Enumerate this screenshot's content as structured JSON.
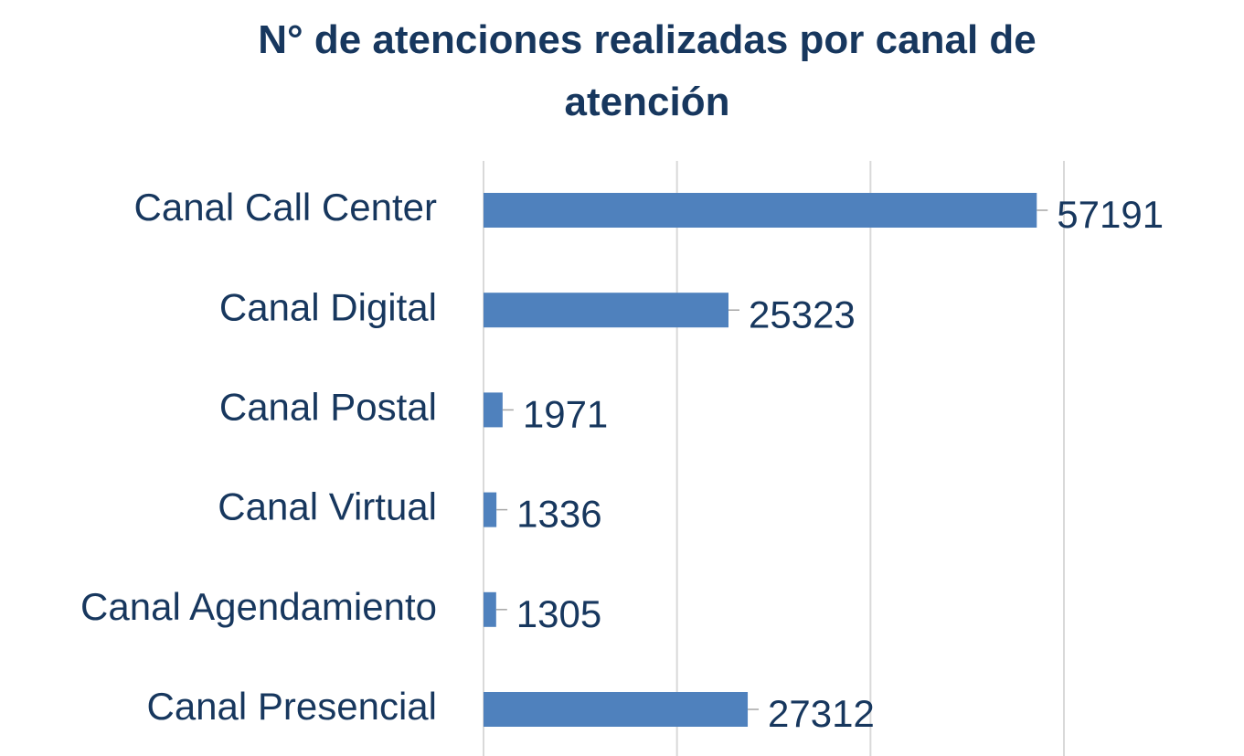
{
  "chart_data": {
    "type": "bar",
    "orientation": "horizontal",
    "title": "N° de atenciones realizadas por canal de atención",
    "categories": [
      "Canal Call Center",
      "Canal Digital",
      "Canal Postal",
      "Canal Virtual",
      "Canal Agendamiento",
      "Canal Presencial"
    ],
    "values": [
      57191,
      25323,
      1971,
      1336,
      1305,
      27312
    ],
    "color": "#4f81bd",
    "xlim": [
      0,
      60000
    ],
    "xticks": [
      0,
      20000,
      40000,
      60000
    ],
    "grid": true
  }
}
